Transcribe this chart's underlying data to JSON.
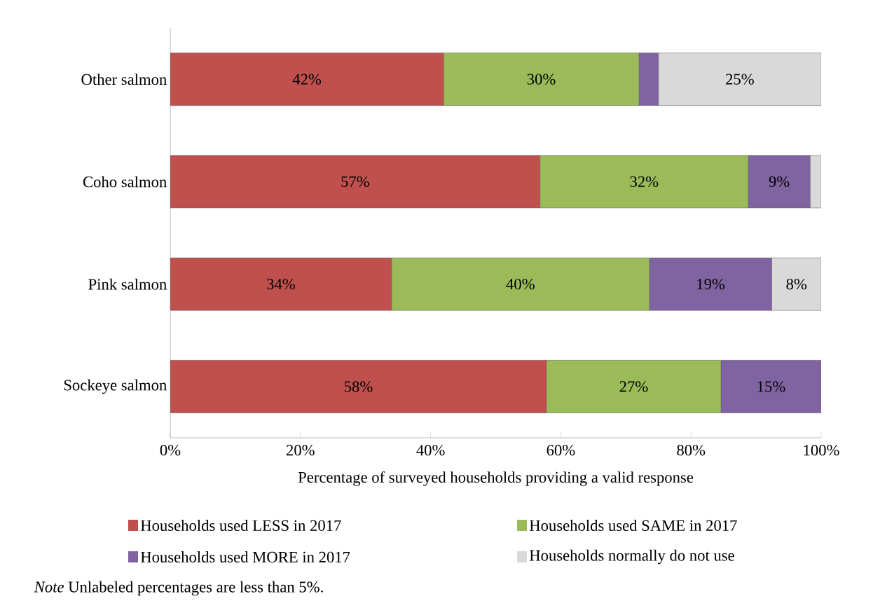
{
  "chart_data": {
    "type": "bar",
    "orientation": "horizontal",
    "stacked": true,
    "categories": [
      "Other salmon",
      "Coho salmon",
      "Pink salmon",
      "Sockeye salmon"
    ],
    "series": [
      {
        "name": "Households used LESS in 2017",
        "color": "#c0504d",
        "values": [
          42,
          56.8,
          34,
          57.8
        ],
        "value_labels": [
          "42%",
          "57%",
          "34%",
          "58%"
        ]
      },
      {
        "name": "Households used SAME in 2017",
        "color": "#9bbb59",
        "values": [
          30,
          32,
          39.6,
          26.8
        ],
        "value_labels": [
          "30%",
          "32%",
          "40%",
          "27%"
        ]
      },
      {
        "name": "Households used MORE in 2017",
        "color": "#8064a2",
        "values": [
          3,
          9.5,
          18.8,
          15.4
        ],
        "value_labels": [
          null,
          "9%",
          "19%",
          "15%"
        ]
      },
      {
        "name": "Households normally do not use",
        "color": "#d9d9d9",
        "values": [
          25,
          1.7,
          7.6,
          null
        ],
        "value_labels": [
          "25%",
          null,
          "8%",
          null
        ]
      }
    ],
    "xlim": [
      0,
      100
    ],
    "xticks": [
      {
        "value": 0,
        "label": "0%"
      },
      {
        "value": 20,
        "label": "20%"
      },
      {
        "value": 40,
        "label": "40%"
      },
      {
        "value": 60,
        "label": "60%"
      },
      {
        "value": 80,
        "label": "80%"
      },
      {
        "value": 100,
        "label": "100%"
      }
    ],
    "xlabel": "Percentage of  surveyed households providing a valid response",
    "legend": "bottom",
    "grid": false,
    "annotations": [
      "*Note* Unlabeled percentages are less than 5%."
    ]
  }
}
